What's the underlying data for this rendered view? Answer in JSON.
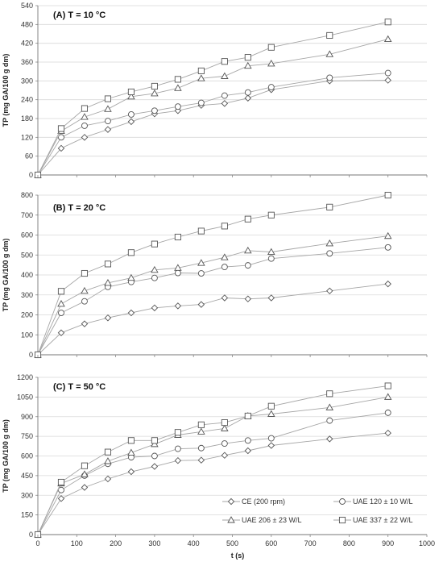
{
  "chart_data": {
    "type": "line",
    "xlabel": "t (s)",
    "x_ticks": [
      "0",
      "100",
      "200",
      "300",
      "400",
      "500",
      "600",
      "700",
      "800",
      "900",
      "1000"
    ],
    "xlim": [
      0,
      1000
    ],
    "legend": {
      "placement": "bottom-right",
      "entries": [
        "CE (200 rpm)",
        "UAE 120 ± 10 W/L",
        "UAE 206 ± 23 W/L",
        "UAE 337 ± 22 W/L"
      ],
      "markers": [
        "diamond",
        "circle",
        "triangle",
        "square"
      ]
    },
    "panels": [
      {
        "title": "(A) T = 10 °C",
        "ylabel": "TP (mg GA/100 g dm)",
        "ylim": [
          0,
          540
        ],
        "y_ticks": [
          "0",
          "60",
          "120",
          "180",
          "240",
          "300",
          "360",
          "420",
          "480",
          "540"
        ],
        "series": [
          {
            "name": "CE (200 rpm)",
            "marker": "diamond",
            "x": [
              0,
              60,
              120,
              180,
              240,
              300,
              360,
              420,
              480,
              540,
              600,
              750,
              900
            ],
            "y": [
              0,
              85,
              120,
              145,
              170,
              195,
              205,
              222,
              228,
              245,
              272,
              300,
              302
            ]
          },
          {
            "name": "UAE 120 ± 10 W/L",
            "marker": "circle",
            "x": [
              0,
              60,
              120,
              180,
              240,
              300,
              360,
              420,
              480,
              540,
              600,
              750,
              900
            ],
            "y": [
              0,
              120,
              157,
              172,
              193,
              205,
              218,
              230,
              253,
              263,
              280,
              310,
              325
            ]
          },
          {
            "name": "UAE 206 ± 23 W/L",
            "marker": "triangle",
            "x": [
              0,
              60,
              120,
              180,
              240,
              300,
              360,
              420,
              480,
              540,
              600,
              750,
              900
            ],
            "y": [
              0,
              140,
              185,
              210,
              250,
              260,
              277,
              308,
              315,
              348,
              355,
              385,
              433
            ]
          },
          {
            "name": "UAE 337 ± 22 W/L",
            "marker": "square",
            "x": [
              0,
              60,
              120,
              180,
              240,
              300,
              360,
              420,
              480,
              540,
              600,
              750,
              900
            ],
            "y": [
              0,
              148,
              212,
              243,
              265,
              283,
              305,
              332,
              362,
              375,
              407,
              445,
              488
            ]
          }
        ]
      },
      {
        "title": "(B) T = 20 °C",
        "ylabel": "TP (mg GA/100 g dm)",
        "ylim": [
          0,
          800
        ],
        "y_ticks": [
          "0",
          "100",
          "200",
          "300",
          "400",
          "500",
          "600",
          "700",
          "800"
        ],
        "series": [
          {
            "name": "CE (200 rpm)",
            "marker": "diamond",
            "x": [
              0,
              60,
              120,
              180,
              240,
              300,
              360,
              420,
              480,
              540,
              600,
              750,
              900
            ],
            "y": [
              0,
              110,
              155,
              185,
              210,
              235,
              245,
              252,
              285,
              280,
              285,
              320,
              355
            ]
          },
          {
            "name": "UAE 120 ± 10 W/L",
            "marker": "circle",
            "x": [
              0,
              60,
              120,
              180,
              240,
              300,
              360,
              420,
              480,
              540,
              600,
              750,
              900
            ],
            "y": [
              0,
              210,
              268,
              340,
              365,
              385,
              410,
              408,
              440,
              448,
              482,
              508,
              538
            ]
          },
          {
            "name": "UAE 206 ± 23 W/L",
            "marker": "triangle",
            "x": [
              0,
              60,
              120,
              180,
              240,
              300,
              360,
              420,
              480,
              540,
              600,
              750,
              900
            ],
            "y": [
              0,
              255,
              320,
              360,
              385,
              425,
              435,
              460,
              488,
              522,
              515,
              558,
              595
            ]
          },
          {
            "name": "UAE 337 ± 22 W/L",
            "marker": "square",
            "x": [
              0,
              60,
              120,
              180,
              240,
              300,
              360,
              420,
              480,
              540,
              600,
              750,
              900
            ],
            "y": [
              0,
              318,
              408,
              455,
              512,
              555,
              590,
              620,
              645,
              680,
              700,
              740,
              800
            ]
          }
        ]
      },
      {
        "title": "(C) T = 50 °C",
        "ylabel": "TP (mg GA/100 g dm)",
        "ylim": [
          0,
          1200
        ],
        "y_ticks": [
          "0",
          "150",
          "300",
          "450",
          "600",
          "750",
          "900",
          "1050",
          "1200"
        ],
        "series": [
          {
            "name": "CE (200 rpm)",
            "marker": "diamond",
            "x": [
              0,
              60,
              120,
              180,
              240,
              300,
              360,
              420,
              480,
              540,
              600,
              750,
              900
            ],
            "y": [
              0,
              275,
              360,
              425,
              480,
              520,
              565,
              568,
              605,
              640,
              680,
              730,
              775
            ]
          },
          {
            "name": "UAE 120 ± 10 W/L",
            "marker": "circle",
            "x": [
              0,
              60,
              120,
              180,
              240,
              300,
              360,
              420,
              480,
              540,
              600,
              750,
              900
            ],
            "y": [
              0,
              340,
              450,
              540,
              590,
              600,
              655,
              660,
              695,
              718,
              735,
              870,
              930
            ]
          },
          {
            "name": "UAE 206 ± 23 W/L",
            "marker": "triangle",
            "x": [
              0,
              60,
              120,
              180,
              240,
              300,
              360,
              420,
              480,
              540,
              600,
              750,
              900
            ],
            "y": [
              0,
              390,
              460,
              560,
              625,
              690,
              760,
              785,
              810,
              905,
              920,
              970,
              1050
            ]
          },
          {
            "name": "UAE 337 ± 22 W/L",
            "marker": "square",
            "x": [
              0,
              60,
              120,
              180,
              240,
              300,
              360,
              420,
              480,
              540,
              600,
              750,
              900
            ],
            "y": [
              0,
              400,
              525,
              630,
              718,
              718,
              780,
              838,
              855,
              905,
              980,
              1075,
              1135
            ]
          }
        ]
      }
    ]
  }
}
